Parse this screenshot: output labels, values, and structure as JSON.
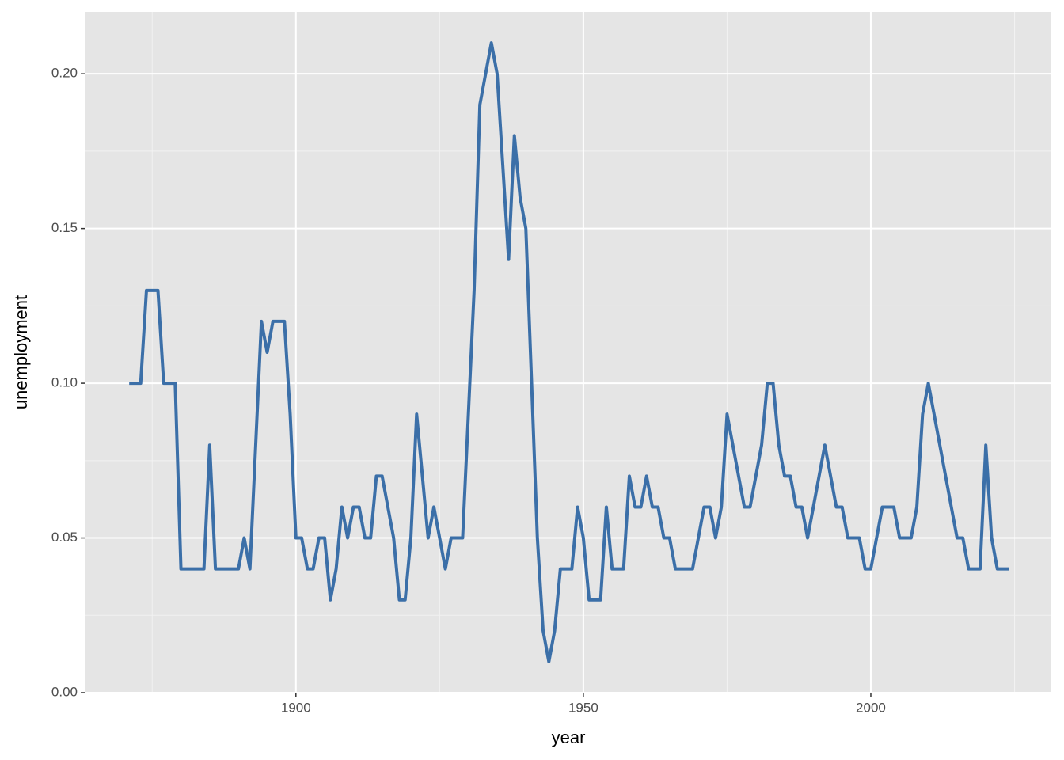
{
  "chart_data": {
    "type": "line",
    "x_label": "year",
    "y_label": "unemployment",
    "x": [
      1871,
      1872,
      1873,
      1874,
      1875,
      1876,
      1877,
      1878,
      1879,
      1880,
      1881,
      1882,
      1883,
      1884,
      1885,
      1886,
      1887,
      1888,
      1889,
      1890,
      1891,
      1892,
      1893,
      1894,
      1895,
      1896,
      1897,
      1898,
      1899,
      1900,
      1901,
      1902,
      1903,
      1904,
      1905,
      1906,
      1907,
      1908,
      1909,
      1910,
      1911,
      1912,
      1913,
      1914,
      1915,
      1916,
      1917,
      1918,
      1919,
      1920,
      1921,
      1922,
      1923,
      1924,
      1925,
      1926,
      1927,
      1928,
      1929,
      1930,
      1931,
      1932,
      1933,
      1934,
      1935,
      1936,
      1937,
      1938,
      1939,
      1940,
      1941,
      1942,
      1943,
      1944,
      1945,
      1946,
      1947,
      1948,
      1949,
      1950,
      1951,
      1952,
      1953,
      1954,
      1955,
      1956,
      1957,
      1958,
      1959,
      1960,
      1961,
      1962,
      1963,
      1964,
      1965,
      1966,
      1967,
      1968,
      1969,
      1970,
      1971,
      1972,
      1973,
      1974,
      1975,
      1976,
      1977,
      1978,
      1979,
      1980,
      1981,
      1982,
      1983,
      1984,
      1985,
      1986,
      1987,
      1988,
      1989,
      1990,
      1991,
      1992,
      1993,
      1994,
      1995,
      1996,
      1997,
      1998,
      1999,
      2000,
      2001,
      2002,
      2003,
      2004,
      2005,
      2006,
      2007,
      2008,
      2009,
      2010,
      2011,
      2012,
      2013,
      2014,
      2015,
      2016,
      2017,
      2018,
      2019,
      2020,
      2021,
      2022,
      2023,
      2024
    ],
    "series": [
      {
        "color": "#3b6fa8",
        "values": [
          0.1,
          0.1,
          0.1,
          0.13,
          0.13,
          0.13,
          0.1,
          0.1,
          0.1,
          0.04,
          0.04,
          0.04,
          0.04,
          0.04,
          0.08,
          0.04,
          0.04,
          0.04,
          0.04,
          0.04,
          0.05,
          0.04,
          0.08,
          0.12,
          0.11,
          0.12,
          0.12,
          0.12,
          0.09,
          0.05,
          0.05,
          0.04,
          0.04,
          0.05,
          0.05,
          0.03,
          0.04,
          0.06,
          0.05,
          0.06,
          0.06,
          0.05,
          0.05,
          0.07,
          0.07,
          0.06,
          0.05,
          0.03,
          0.03,
          0.05,
          0.09,
          0.07,
          0.05,
          0.06,
          0.05,
          0.04,
          0.05,
          0.05,
          0.05,
          0.09,
          0.13,
          0.19,
          0.2,
          0.21,
          0.2,
          0.17,
          0.14,
          0.18,
          0.16,
          0.15,
          0.1,
          0.05,
          0.02,
          0.01,
          0.02,
          0.04,
          0.04,
          0.04,
          0.06,
          0.05,
          0.03,
          0.03,
          0.03,
          0.06,
          0.04,
          0.04,
          0.04,
          0.07,
          0.06,
          0.06,
          0.07,
          0.06,
          0.06,
          0.05,
          0.05,
          0.04,
          0.04,
          0.04,
          0.04,
          0.05,
          0.06,
          0.06,
          0.05,
          0.06,
          0.09,
          0.08,
          0.07,
          0.06,
          0.06,
          0.07,
          0.08,
          0.1,
          0.1,
          0.08,
          0.07,
          0.07,
          0.06,
          0.06,
          0.05,
          0.06,
          0.07,
          0.08,
          0.07,
          0.06,
          0.06,
          0.05,
          0.05,
          0.05,
          0.04,
          0.04,
          0.05,
          0.06,
          0.06,
          0.06,
          0.05,
          0.05,
          0.05,
          0.06,
          0.09,
          0.1,
          0.09,
          0.08,
          0.07,
          0.06,
          0.05,
          0.05,
          0.04,
          0.04,
          0.04,
          0.08,
          0.05,
          0.04,
          0.04,
          0.04
        ]
      }
    ],
    "xlim": [
      1863.4,
      2031.4
    ],
    "xticks": [
      1900,
      1950,
      2000
    ],
    "ylim": [
      0,
      0.22
    ],
    "yticks": [
      {
        "value": 0,
        "label": "0.00"
      },
      0.05,
      {
        "value": 0.1,
        "label": "0.10"
      },
      0.15,
      {
        "value": 0.2,
        "label": "0.20"
      }
    ],
    "grid": true
  }
}
